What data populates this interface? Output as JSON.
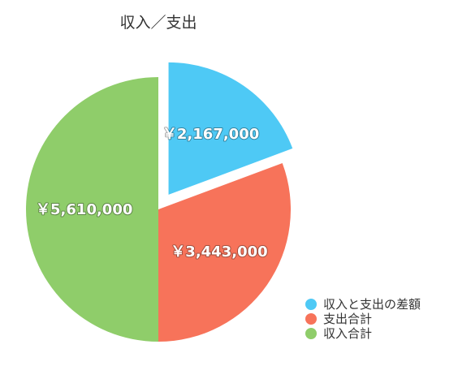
{
  "chart_data": {
    "type": "pie",
    "title": "収入／支出",
    "slices": [
      {
        "name": "収入と支出の差額",
        "value": 2167000,
        "label": "￥2,167,000",
        "color": "#4ec9f5",
        "exploded": true
      },
      {
        "name": "支出合計",
        "value": 3443000,
        "label": "￥3,443,000",
        "color": "#f7735a",
        "exploded": false
      },
      {
        "name": "収入合計",
        "value": 5610000,
        "label": "￥5,610,000",
        "color": "#8fcd6a",
        "exploded": false
      }
    ],
    "legend": {
      "position": "bottom-right",
      "items": [
        "収入と支出の差額",
        "支出合計",
        "収入合計"
      ]
    },
    "start_angle": "top",
    "direction": "clockwise"
  }
}
